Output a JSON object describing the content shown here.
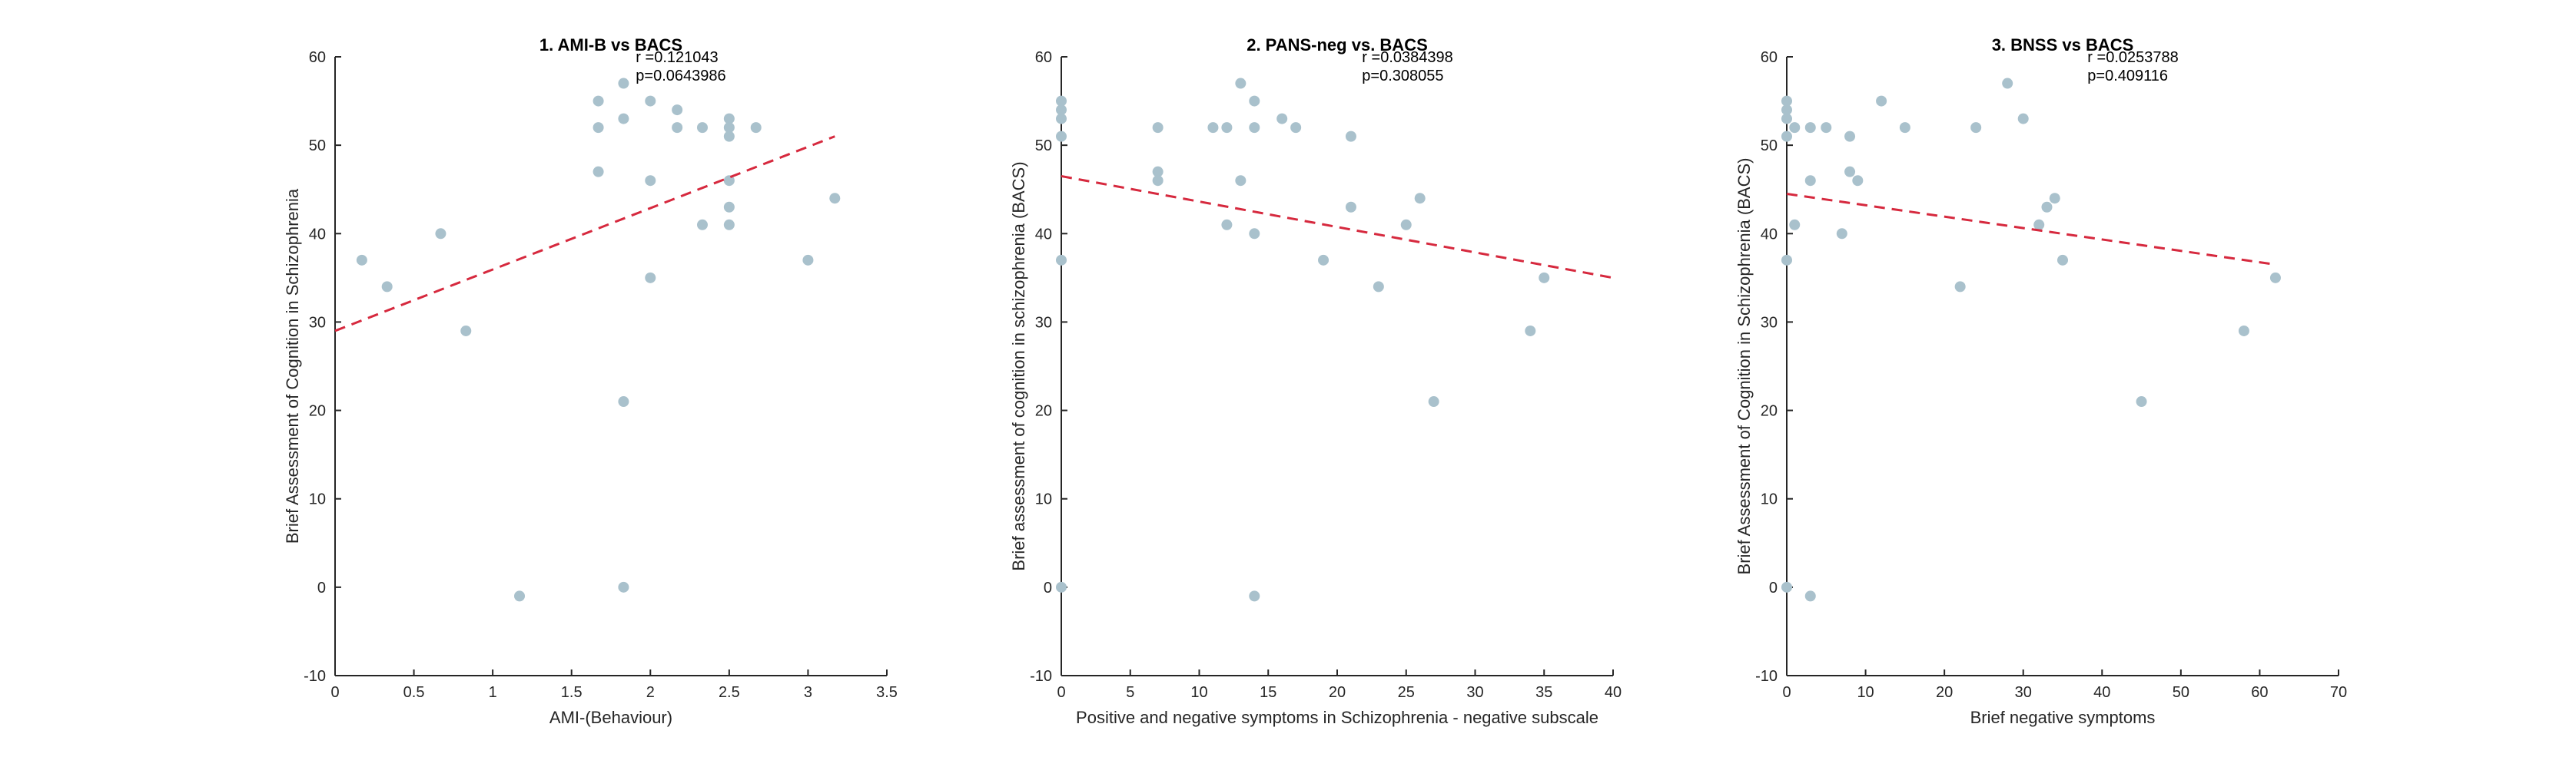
{
  "chart_data": [
    {
      "type": "scatter",
      "title": "1. AMI-B vs BACS",
      "xlabel": "AMI-(Behaviour)",
      "ylabel": "Brief Assessment of Cognition in Schizophrenia",
      "xlim": [
        0,
        3.5
      ],
      "ylim": [
        -10,
        60
      ],
      "xticks": [
        "0",
        "0.5",
        "1",
        "1.5",
        "2",
        "2.5",
        "3",
        "3.5"
      ],
      "yticks": [
        "-10",
        "0",
        "10",
        "20",
        "30",
        "40",
        "50",
        "60"
      ],
      "stats": {
        "r": "r =0.121043",
        "p": "p=0.0643986"
      },
      "fit": {
        "x": [
          0,
          3.17
        ],
        "y": [
          29,
          51
        ]
      },
      "grid": false,
      "colors": {
        "points": "#a9c1cc",
        "fit": "#d6293e"
      },
      "points": [
        {
          "x": 0.17,
          "y": 37
        },
        {
          "x": 0.33,
          "y": 34
        },
        {
          "x": 0.67,
          "y": 40
        },
        {
          "x": 0.83,
          "y": 29
        },
        {
          "x": 1.17,
          "y": -1
        },
        {
          "x": 1.67,
          "y": 55
        },
        {
          "x": 1.67,
          "y": 52
        },
        {
          "x": 1.67,
          "y": 47
        },
        {
          "x": 1.83,
          "y": 57
        },
        {
          "x": 1.83,
          "y": 53
        },
        {
          "x": 1.83,
          "y": 21
        },
        {
          "x": 1.83,
          "y": 0
        },
        {
          "x": 2.0,
          "y": 55
        },
        {
          "x": 2.0,
          "y": 46
        },
        {
          "x": 2.0,
          "y": 35
        },
        {
          "x": 2.17,
          "y": 54
        },
        {
          "x": 2.17,
          "y": 52
        },
        {
          "x": 2.33,
          "y": 52
        },
        {
          "x": 2.33,
          "y": 41
        },
        {
          "x": 2.5,
          "y": 53
        },
        {
          "x": 2.5,
          "y": 52
        },
        {
          "x": 2.5,
          "y": 51
        },
        {
          "x": 2.5,
          "y": 46
        },
        {
          "x": 2.5,
          "y": 43
        },
        {
          "x": 2.5,
          "y": 41
        },
        {
          "x": 2.67,
          "y": 52
        },
        {
          "x": 3.0,
          "y": 37
        },
        {
          "x": 3.17,
          "y": 44
        }
      ]
    },
    {
      "type": "scatter",
      "title": "2. PANS-neg vs. BACS",
      "xlabel": "Positive and negative symptoms in Schizophrenia - negative subscale",
      "ylabel": "Brief assessment of cognition in schizophrenia (BACS)",
      "xlim": [
        0,
        40
      ],
      "ylim": [
        -10,
        60
      ],
      "xticks": [
        "0",
        "5",
        "10",
        "15",
        "20",
        "25",
        "30",
        "35",
        "40"
      ],
      "yticks": [
        "-10",
        "0",
        "10",
        "20",
        "30",
        "40",
        "50",
        "60"
      ],
      "stats": {
        "r": "r =0.0384398",
        "p": "p=0.308055"
      },
      "fit": {
        "x": [
          0,
          40
        ],
        "y": [
          46.5,
          35
        ]
      },
      "grid": false,
      "colors": {
        "points": "#a9c1cc",
        "fit": "#d6293e"
      },
      "points": [
        {
          "x": 0,
          "y": 55
        },
        {
          "x": 0,
          "y": 54
        },
        {
          "x": 0,
          "y": 53
        },
        {
          "x": 0,
          "y": 51
        },
        {
          "x": 0,
          "y": 37
        },
        {
          "x": 0,
          "y": 0
        },
        {
          "x": 7,
          "y": 52
        },
        {
          "x": 7,
          "y": 47
        },
        {
          "x": 7,
          "y": 46
        },
        {
          "x": 11,
          "y": 52
        },
        {
          "x": 12,
          "y": 52
        },
        {
          "x": 12,
          "y": 41
        },
        {
          "x": 13,
          "y": 57
        },
        {
          "x": 13,
          "y": 46
        },
        {
          "x": 14,
          "y": 55
        },
        {
          "x": 14,
          "y": 52
        },
        {
          "x": 14,
          "y": 40
        },
        {
          "x": 14,
          "y": -1
        },
        {
          "x": 16,
          "y": 53
        },
        {
          "x": 17,
          "y": 52
        },
        {
          "x": 19,
          "y": 37
        },
        {
          "x": 21,
          "y": 51
        },
        {
          "x": 21,
          "y": 43
        },
        {
          "x": 23,
          "y": 34
        },
        {
          "x": 25,
          "y": 41
        },
        {
          "x": 26,
          "y": 44
        },
        {
          "x": 27,
          "y": 21
        },
        {
          "x": 34,
          "y": 29
        },
        {
          "x": 35,
          "y": 35
        }
      ]
    },
    {
      "type": "scatter",
      "title": "3. BNSS vs BACS",
      "xlabel": "Brief negative symptoms",
      "ylabel": "Brief Assessment of Cognition in Schizophrenia (BACS)",
      "xlim": [
        0,
        70
      ],
      "ylim": [
        -10,
        60
      ],
      "xticks": [
        "0",
        "10",
        "20",
        "30",
        "40",
        "50",
        "60",
        "70"
      ],
      "yticks": [
        "-10",
        "0",
        "10",
        "20",
        "30",
        "40",
        "50",
        "60"
      ],
      "stats": {
        "r": "r =0.0253788",
        "p": "p=0.409116"
      },
      "fit": {
        "x": [
          0,
          62
        ],
        "y": [
          44.5,
          36.5
        ]
      },
      "grid": false,
      "colors": {
        "points": "#a9c1cc",
        "fit": "#d6293e"
      },
      "points": [
        {
          "x": 0,
          "y": 55
        },
        {
          "x": 0,
          "y": 54
        },
        {
          "x": 0,
          "y": 53
        },
        {
          "x": 0,
          "y": 51
        },
        {
          "x": 0,
          "y": 37
        },
        {
          "x": 0,
          "y": 0
        },
        {
          "x": 1,
          "y": 52
        },
        {
          "x": 1,
          "y": 41
        },
        {
          "x": 3,
          "y": 52
        },
        {
          "x": 3,
          "y": 46
        },
        {
          "x": 3,
          "y": -1
        },
        {
          "x": 5,
          "y": 52
        },
        {
          "x": 7,
          "y": 40
        },
        {
          "x": 8,
          "y": 51
        },
        {
          "x": 8,
          "y": 47
        },
        {
          "x": 9,
          "y": 46
        },
        {
          "x": 12,
          "y": 55
        },
        {
          "x": 15,
          "y": 52
        },
        {
          "x": 22,
          "y": 34
        },
        {
          "x": 24,
          "y": 52
        },
        {
          "x": 28,
          "y": 57
        },
        {
          "x": 30,
          "y": 53
        },
        {
          "x": 32,
          "y": 41
        },
        {
          "x": 33,
          "y": 43
        },
        {
          "x": 34,
          "y": 44
        },
        {
          "x": 35,
          "y": 37
        },
        {
          "x": 45,
          "y": 21
        },
        {
          "x": 58,
          "y": 29
        },
        {
          "x": 62,
          "y": 35
        }
      ]
    }
  ]
}
